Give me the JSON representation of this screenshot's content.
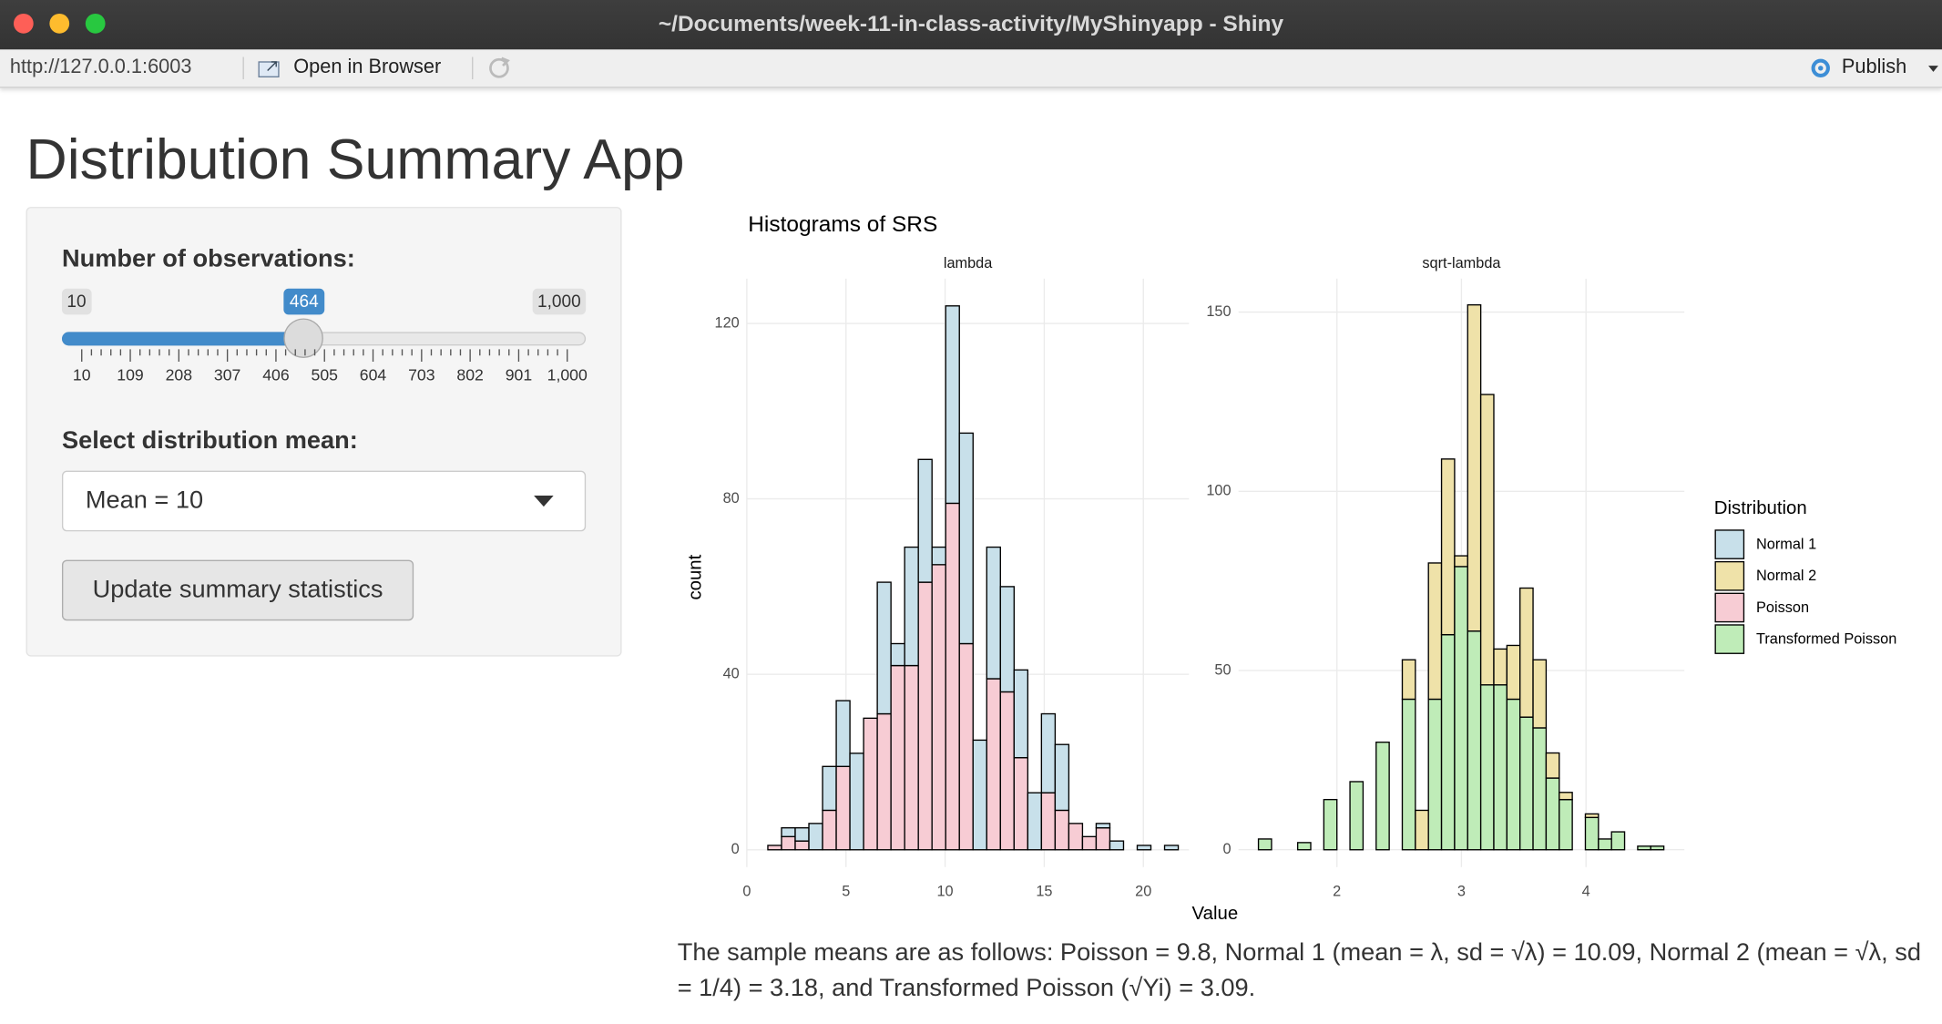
{
  "window": {
    "title": "~/Documents/week-11-in-class-activity/MyShinyapp - Shiny"
  },
  "toolbar": {
    "url": "http://127.0.0.1:6003",
    "open_button": "Open in Browser",
    "publish_button": "Publish"
  },
  "app": {
    "title": "Distribution Summary App",
    "sidebar": {
      "slider": {
        "label": "Number of observations:",
        "min_label": "10",
        "max_label": "1,000",
        "value_label": "464",
        "tick_labels": [
          "10",
          "109",
          "208",
          "307",
          "406",
          "505",
          "604",
          "703",
          "802",
          "901",
          "1,000"
        ]
      },
      "select": {
        "label": "Select distribution mean:",
        "value": "Mean = 10"
      },
      "button": "Update summary statistics"
    },
    "summary_text": "The sample means are as follows: Poisson = 9.8, Normal 1 (mean = λ, sd = √λ) = 10.09, Normal 2 (mean = √λ, sd = 1/4) = 3.18, and Transformed Poisson (√Yi) = 3.09."
  },
  "chart_data": {
    "type": "histogram",
    "title": "Histograms of SRS",
    "x_label": "Value",
    "y_label": "count",
    "legend": {
      "title": "Distribution",
      "position": "right"
    },
    "grid": true,
    "stacked": true,
    "facets": [
      {
        "title": "lambda",
        "bins": [
          1.06,
          1.75,
          2.44,
          3.13,
          3.82,
          4.51,
          5.2,
          5.89,
          6.58,
          7.27,
          7.96,
          8.65,
          9.34,
          10.03,
          10.72,
          11.41,
          12.1,
          12.79,
          13.48,
          14.17,
          14.86,
          15.55,
          16.24,
          16.93,
          17.62,
          18.31,
          19,
          19.69,
          20.38,
          21.07,
          21.76
        ],
        "series": [
          {
            "name": "Normal 1",
            "color": "#c8e0ea",
            "values": [
              0,
              2,
              3,
              6,
              10,
              15,
              22,
              0,
              30,
              5,
              27,
              28,
              4,
              45,
              48,
              25,
              30,
              24,
              20,
              13,
              18,
              15,
              0,
              0,
              1,
              2,
              0,
              1,
              0,
              1
            ]
          },
          {
            "name": "Poisson",
            "color": "#f7ccd4",
            "values": [
              1,
              3,
              2,
              0,
              9,
              19,
              0,
              30,
              31,
              42,
              42,
              61,
              65,
              79,
              47,
              0,
              39,
              36,
              21,
              0,
              13,
              9,
              6,
              3,
              5,
              0,
              0,
              0,
              0,
              0
            ]
          }
        ],
        "xlim": [
          0,
          22.3
        ],
        "xticks": [
          0,
          5,
          10,
          15,
          20
        ],
        "ylim": [
          -3.95,
          130.2
        ],
        "yticks": [
          0,
          40,
          80,
          120
        ]
      },
      {
        "title": "sqrt-lambda",
        "bins": [
          1.37,
          1.475,
          1.58,
          1.685,
          1.79,
          1.895,
          2,
          2.105,
          2.21,
          2.315,
          2.42,
          2.525,
          2.63,
          2.735,
          2.84,
          2.945,
          3.05,
          3.155,
          3.26,
          3.365,
          3.47,
          3.575,
          3.68,
          3.785,
          3.89,
          3.995,
          4.1,
          4.205,
          4.31,
          4.415,
          4.52,
          4.625
        ],
        "series": [
          {
            "name": "Normal 2",
            "color": "#efe2a9",
            "values": [
              0,
              0,
              0,
              0,
              0,
              0,
              0,
              0,
              0,
              0,
              0,
              11,
              11,
              38,
              49,
              3,
              91,
              81,
              10,
              15,
              36,
              19,
              7,
              2,
              0,
              1,
              0,
              0,
              0,
              0,
              0
            ]
          },
          {
            "name": "Transformed Poisson",
            "color": "#bfecb8",
            "values": [
              3,
              0,
              0,
              2,
              0,
              14,
              0,
              19,
              0,
              30,
              0,
              42,
              0,
              42,
              60,
              79,
              61,
              46,
              46,
              42,
              37,
              34,
              20,
              14,
              0,
              9,
              3,
              5,
              0,
              1,
              1
            ]
          }
        ],
        "xlim": [
          1.21,
          4.79
        ],
        "xticks": [
          2,
          3,
          4
        ],
        "ylim": [
          -4.84,
          159.3
        ],
        "yticks": [
          0,
          50,
          100,
          150
        ]
      }
    ]
  }
}
